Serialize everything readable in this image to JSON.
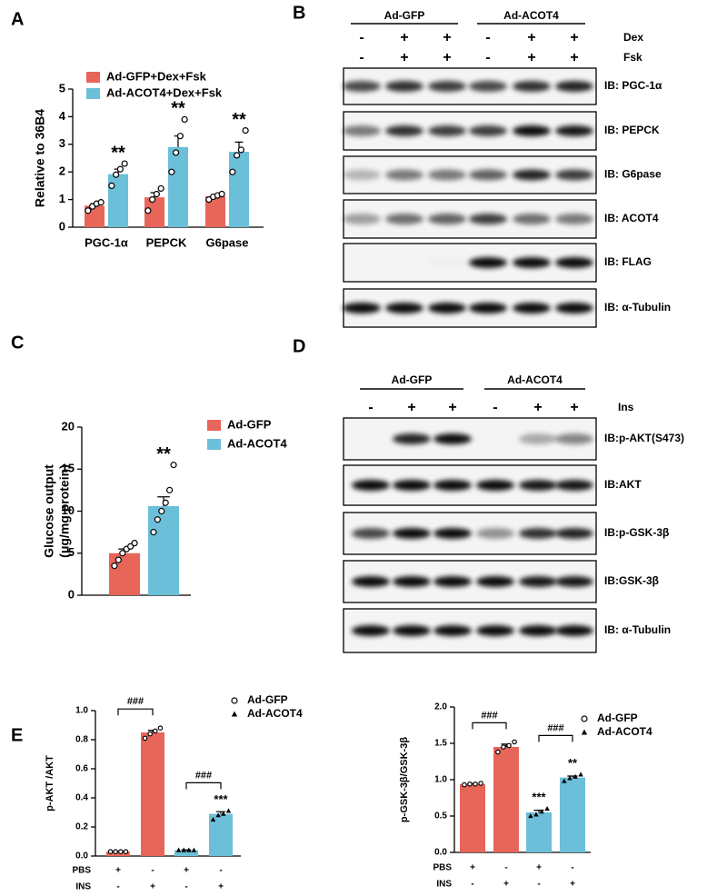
{
  "panels": [
    "A",
    "B",
    "C",
    "D",
    "E"
  ],
  "blots": [
    {
      "groups": [
        "Ad-GFP",
        "Ad-ACOT4"
      ],
      "treatments": [
        {
          "name": "Dex",
          "signs": [
            "-",
            "+",
            "+",
            "-",
            "+",
            "+"
          ]
        },
        {
          "name": "Fsk",
          "signs": [
            "-",
            "+",
            "+",
            "-",
            "+",
            "+"
          ]
        }
      ],
      "labels": [
        "IB: PGC-1α",
        "IB: PEPCK",
        "IB: G6pase",
        "IB: ACOT4",
        "IB: FLAG",
        "IB: α-Tubulin"
      ]
    },
    {
      "groups": [
        "Ad-GFP",
        "Ad-ACOT4"
      ],
      "treatments": [
        {
          "name": "Ins",
          "signs": [
            "-",
            "+",
            "+",
            "-",
            "+",
            "+"
          ]
        }
      ],
      "labels": [
        "IB:p-AKT(S473)",
        "IB:AKT",
        "IB:p-GSK-3β",
        "IB:GSK-3β",
        "IB: α-Tubulin"
      ]
    }
  ],
  "chart_data": [
    {
      "type": "bar",
      "ylabel": "Relative to 36B4",
      "categories": [
        "PGC-1α",
        "PEPCK",
        "G6pase"
      ],
      "series": [
        {
          "name": "Ad-GFP+Dex+Fsk",
          "color": "#e8655a",
          "values": [
            0.78,
            1.08,
            1.12
          ],
          "errors": [
            0.07,
            0.17,
            0.05
          ],
          "points": [
            [
              0.6,
              0.75,
              0.85,
              0.9
            ],
            [
              0.6,
              1.0,
              1.2,
              1.4
            ],
            [
              1.0,
              1.1,
              1.15,
              1.2
            ]
          ]
        },
        {
          "name": "Ad-ACOT4+Dex+Fsk",
          "color": "#6bbfd9",
          "values": [
            1.92,
            2.9,
            2.73
          ],
          "errors": [
            0.18,
            0.4,
            0.35
          ],
          "points": [
            [
              1.5,
              1.9,
              2.1,
              2.3
            ],
            [
              2.0,
              2.7,
              3.3,
              3.9
            ],
            [
              2.0,
              2.6,
              2.8,
              3.5
            ]
          ]
        }
      ],
      "ylim": [
        0,
        5
      ],
      "yticks": [
        0,
        1,
        2,
        3,
        4,
        5
      ],
      "legend_style": "box",
      "annotations": [
        "**",
        "**",
        "**"
      ]
    },
    {
      "type": "bar",
      "ylabel": [
        "Glucose output",
        "(μg/mg protein)"
      ],
      "categories": [
        null,
        null
      ],
      "series": [
        {
          "name": "Ad-GFP",
          "color": "#e8655a",
          "values": [
            5.0,
            null
          ],
          "errors": [
            0.5,
            null
          ],
          "points": [
            [
              3.5,
              4.2,
              5.0,
              5.5,
              5.8,
              6.2
            ],
            null
          ]
        },
        {
          "name": "Ad-ACOT4",
          "color": "#6bbfd9",
          "values": [
            null,
            10.6
          ],
          "errors": [
            null,
            1.1
          ],
          "points": [
            null,
            [
              7.5,
              9.0,
              10.0,
              11.0,
              12.5,
              15.5
            ]
          ]
        }
      ],
      "ylim": [
        0,
        20
      ],
      "yticks": [
        0,
        5,
        10,
        15,
        20
      ],
      "legend_style": "box",
      "annotations": [
        "**"
      ]
    },
    {
      "type": "bar",
      "ylabel": "p-AKT /AKT",
      "categories": [
        null,
        null,
        null,
        null
      ],
      "row_labels": [
        "PBS",
        "INS"
      ],
      "rows": [
        [
          "+",
          "-",
          "+",
          "-"
        ],
        [
          "-",
          "+",
          "-",
          "+"
        ]
      ],
      "series": [
        {
          "name": "Ad-GFP",
          "color": "#e8655a",
          "marker": "circle",
          "values": [
            0.03,
            0.85,
            null,
            null
          ],
          "errors": [
            0.002,
            0.015,
            null,
            null
          ],
          "points": [
            [
              0.03,
              0.03,
              0.03,
              0.03
            ],
            [
              0.81,
              0.84,
              0.86,
              0.88
            ],
            null,
            null
          ]
        },
        {
          "name": "Ad-ACOT4",
          "color": "#6bbfd9",
          "marker": "triangle",
          "values": [
            null,
            null,
            0.04,
            0.29
          ],
          "errors": [
            null,
            null,
            0.002,
            0.015
          ],
          "points": [
            null,
            null,
            [
              0.04,
              0.04,
              0.04,
              0.04
            ],
            [
              0.25,
              0.28,
              0.29,
              0.31
            ]
          ]
        }
      ],
      "ylim": [
        0,
        1.0
      ],
      "yticks": [
        {
          "value": 0,
          "label": "0.0"
        },
        0.2,
        0.4,
        0.6,
        0.8,
        {
          "value": 1.0,
          "label": "1.0"
        }
      ],
      "legend_style": "marker",
      "annotations": [
        "###",
        "###",
        "***"
      ]
    },
    {
      "type": "bar",
      "ylabel": "p-GSK-3β/GSK-3β",
      "categories": [
        null,
        null,
        null,
        null
      ],
      "row_labels": [
        "PBS",
        "INS"
      ],
      "rows": [
        [
          "+",
          "-",
          "+",
          "-"
        ],
        [
          "-",
          "+",
          "-",
          "+"
        ]
      ],
      "series": [
        {
          "name": "Ad-GFP",
          "color": "#e8655a",
          "marker": "circle",
          "values": [
            0.94,
            1.45,
            null,
            null
          ],
          "errors": [
            0.005,
            0.04,
            null,
            null
          ],
          "points": [
            [
              0.93,
              0.94,
              0.94,
              0.95
            ],
            [
              1.38,
              1.45,
              1.47,
              1.52
            ],
            null,
            null
          ]
        },
        {
          "name": "Ad-ACOT4",
          "color": "#6bbfd9",
          "marker": "triangle",
          "values": [
            null,
            null,
            0.55,
            1.03
          ],
          "errors": [
            null,
            null,
            0.03,
            0.02
          ],
          "points": [
            null,
            null,
            [
              0.5,
              0.52,
              0.56,
              0.6
            ],
            [
              0.98,
              1.02,
              1.04,
              1.07
            ]
          ]
        }
      ],
      "ylim": [
        0,
        2.0
      ],
      "yticks": [
        {
          "value": 0,
          "label": "0.0"
        },
        0.5,
        {
          "value": 1.0,
          "label": "1.0"
        },
        1.5,
        {
          "value": 2.0,
          "label": "2.0"
        }
      ],
      "legend_style": "marker",
      "annotations": [
        "###",
        "###",
        "***",
        "**"
      ]
    }
  ]
}
